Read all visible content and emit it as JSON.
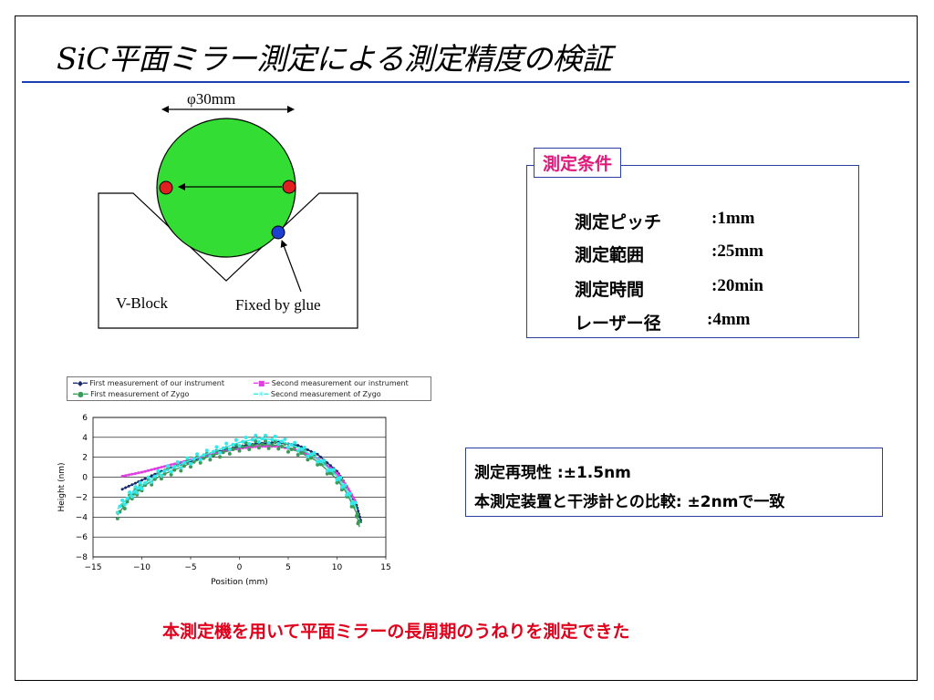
{
  "slide": {
    "title": "SiC平面ミラー測定による測定精度の検証",
    "accent_color": "#1a3fb0"
  },
  "diagram": {
    "diameter_label": "φ30mm",
    "vblock_label": "V-Block",
    "fixed_label": "Fixed by glue",
    "mirror_color": "#33dd33",
    "marker_red": "#e02020",
    "marker_blue": "#1f3fd0"
  },
  "conditions": {
    "title": "測定条件",
    "rows": [
      {
        "label": "測定ピッチ",
        "value": ":1mm"
      },
      {
        "label": "測定範囲",
        "value": ":25mm"
      },
      {
        "label": "測定時間",
        "value": ":20min"
      },
      {
        "label": "レーザー径",
        "value": ":4mm"
      }
    ]
  },
  "results": {
    "line1": "測定再現性 :±1.5nm",
    "line2": "本測定装置と干渉計との比較: ±2nmで一致"
  },
  "conclusion": "本測定機を用いて平面ミラーの長周期のうねりを測定できた",
  "chart_data": {
    "type": "line",
    "xlabel": "Position (mm)",
    "ylabel": "Height (nm)",
    "xlim": [
      -15,
      15
    ],
    "ylim": [
      -8,
      6
    ],
    "xticks": [
      -15,
      -10,
      -5,
      0,
      5,
      10,
      15
    ],
    "yticks": [
      6,
      4,
      2,
      0,
      -2,
      -4,
      -6,
      -8
    ],
    "grid": "horizontal",
    "legend_position": "top",
    "series": [
      {
        "name": "First measurement of our instrument",
        "color": "#1a2a6e",
        "x": [
          -12,
          -10,
          -8,
          -6,
          -4,
          -2,
          0,
          2,
          4,
          6,
          8,
          10,
          11,
          12,
          12.5
        ],
        "y": [
          -1.2,
          -0.3,
          0.6,
          1.3,
          1.9,
          2.6,
          3.1,
          3.4,
          3.5,
          3.2,
          2.3,
          0.6,
          -0.9,
          -2.8,
          -4.6
        ]
      },
      {
        "name": "Second measurement our instrument",
        "color": "#e040e0",
        "x": [
          -12,
          -10,
          -8,
          -6,
          -4,
          -2,
          0,
          2,
          4,
          6,
          8,
          10,
          11,
          12
        ],
        "y": [
          0.1,
          0.5,
          1.0,
          1.5,
          2.0,
          2.5,
          2.9,
          3.1,
          3.1,
          2.7,
          1.9,
          0.4,
          -0.9,
          -2.6
        ]
      },
      {
        "name": "First measurement of Zygo",
        "color": "#3a9a5a",
        "x": [
          -12.5,
          -11,
          -10,
          -8,
          -6,
          -4,
          -2,
          0,
          2,
          4,
          6,
          8,
          10,
          11,
          12,
          12.3
        ],
        "y": [
          -3.8,
          -1.8,
          -1.0,
          0.2,
          1.0,
          1.8,
          2.4,
          3.0,
          3.3,
          3.2,
          2.6,
          1.6,
          -0.2,
          -1.6,
          -3.6,
          -5.0
        ]
      },
      {
        "name": "Second measurement of Zygo",
        "color": "#33e8e8",
        "x": [
          -12.5,
          -11,
          -10,
          -8,
          -6,
          -4,
          -2,
          0,
          2,
          4,
          6,
          8,
          10,
          11,
          12
        ],
        "y": [
          -3.2,
          -1.6,
          -0.8,
          0.5,
          1.3,
          2.1,
          2.8,
          3.5,
          3.9,
          3.7,
          3.0,
          1.9,
          0.1,
          -1.4,
          -3.2
        ]
      }
    ]
  }
}
